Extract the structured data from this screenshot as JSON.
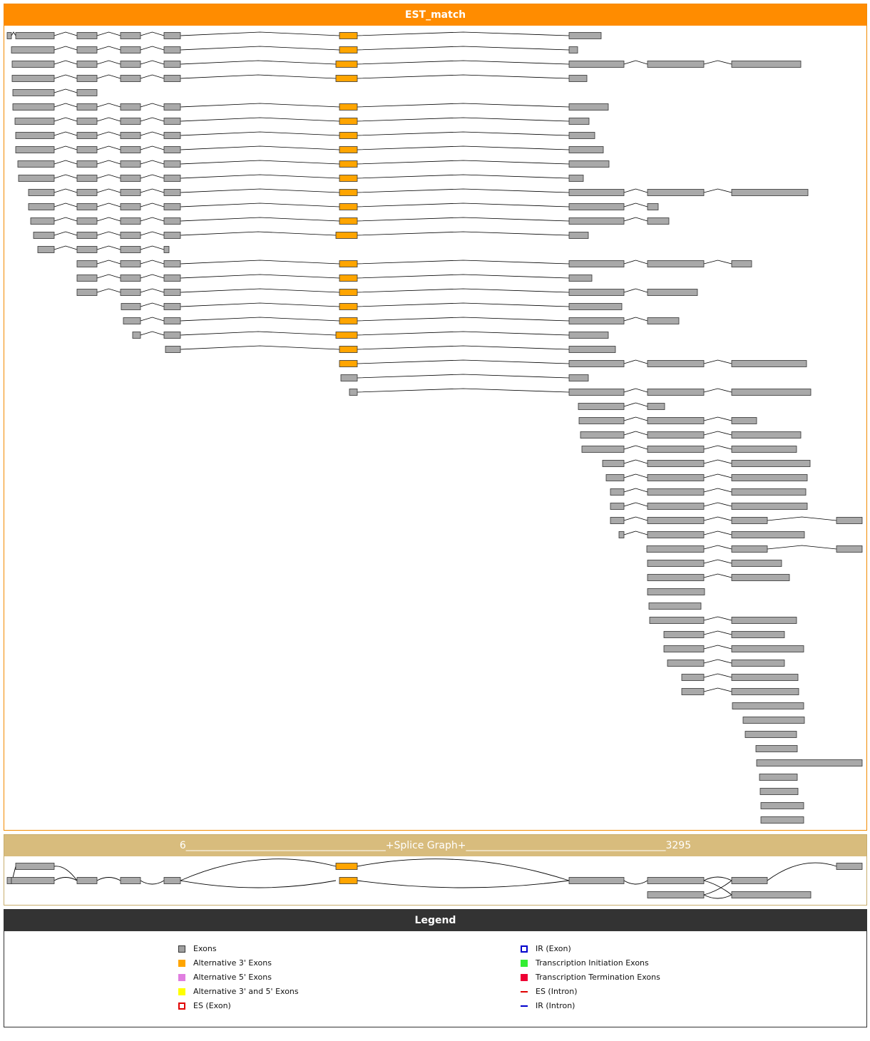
{
  "est_panel": {
    "title": "EST_match"
  },
  "splice_graph_panel": {
    "title": "6________________________________________+Splice Graph+________________________________________3295"
  },
  "legend_panel": {
    "title": "Legend",
    "items": [
      {
        "label": "Exons",
        "swatch": "filled",
        "color": "#a0a0a0"
      },
      {
        "label": "Alternative 3' Exons",
        "swatch": "filled",
        "color": "#ffa500"
      },
      {
        "label": "Alternative 5' Exons",
        "swatch": "filled",
        "color": "#e07ee0"
      },
      {
        "label": "Alternative 3' and 5' Exons",
        "swatch": "filled",
        "color": "#ffff00"
      },
      {
        "label": "ES (Exon)",
        "swatch": "dashed-box",
        "color": "#e00000"
      },
      {
        "label": "IR (Exon)",
        "swatch": "outline-box",
        "color": "#0000cc"
      },
      {
        "label": "Transcription Initiation Exons",
        "swatch": "filled",
        "color": "#33ee33"
      },
      {
        "label": "Transcription Termination Exons",
        "swatch": "filled",
        "color": "#ee0033"
      },
      {
        "label": "ES (Intron)",
        "swatch": "dashed-line",
        "color": "#e00000"
      },
      {
        "label": "IR (Intron)",
        "swatch": "line",
        "color": "#0000cc"
      }
    ]
  },
  "colors": {
    "exon": "#a9a9a9",
    "alt3": "#ffa500",
    "est_header": "#ff8c00",
    "splice_header": "#d8bc7d",
    "legend_header": "#333333"
  },
  "gene_span": {
    "start": 6,
    "end": 3295
  }
}
